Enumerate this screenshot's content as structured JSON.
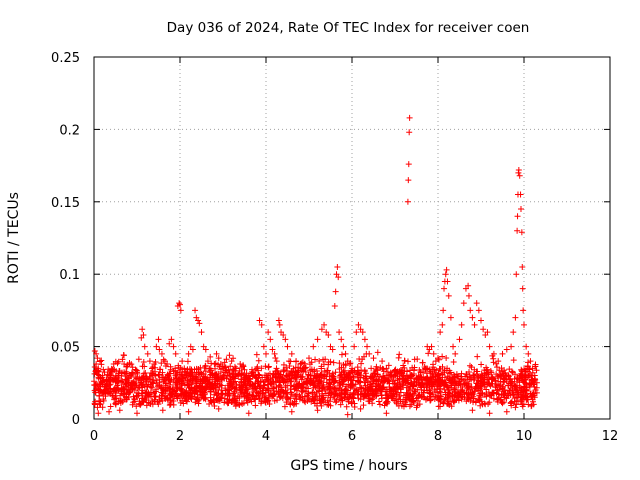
{
  "chart_data": {
    "type": "scatter",
    "title": "Day 036 of 2024, Rate Of TEC Index for receiver coen",
    "xlabel": "GPS time / hours",
    "ylabel": "ROTI / TECUs",
    "xlim": [
      0,
      12
    ],
    "ylim": [
      0,
      0.25
    ],
    "xticks": [
      0,
      2,
      4,
      6,
      8,
      10,
      12
    ],
    "xtick_labels": [
      "0",
      "2",
      "4",
      "6",
      "8",
      "10",
      "12"
    ],
    "yticks": [
      0,
      0.05,
      0.1,
      0.15,
      0.2,
      0.25
    ],
    "ytick_labels": [
      "0",
      "0.05",
      "0.1",
      "0.15",
      "0.2",
      "0.25"
    ],
    "grid": true,
    "marker": "+",
    "marker_color": "#ff0000",
    "series": [
      {
        "name": "ROTI",
        "points": [
          [
            0.02,
            0.047
          ],
          [
            0.05,
            0.045
          ],
          [
            0.08,
            0.042
          ],
          [
            0.05,
            0.038
          ],
          [
            0.1,
            0.035
          ],
          [
            0.12,
            0.03
          ],
          [
            0.15,
            0.028
          ],
          [
            0.2,
            0.025
          ],
          [
            0.25,
            0.022
          ],
          [
            0.3,
            0.02
          ],
          [
            0.02,
            0.01
          ],
          [
            0.08,
            0.008
          ],
          [
            0.15,
            0.012
          ],
          [
            0.35,
            0.03
          ],
          [
            0.42,
            0.034
          ],
          [
            0.5,
            0.028
          ],
          [
            0.58,
            0.03
          ],
          [
            0.65,
            0.032
          ],
          [
            0.7,
            0.038
          ],
          [
            0.75,
            0.036
          ],
          [
            0.82,
            0.03
          ],
          [
            0.9,
            0.025
          ],
          [
            0.95,
            0.02
          ],
          [
            1.0,
            0.018
          ],
          [
            1.05,
            0.022
          ],
          [
            1.1,
            0.056
          ],
          [
            1.12,
            0.062
          ],
          [
            1.15,
            0.058
          ],
          [
            1.18,
            0.05
          ],
          [
            1.25,
            0.045
          ],
          [
            1.3,
            0.04
          ],
          [
            1.35,
            0.035
          ],
          [
            1.4,
            0.038
          ],
          [
            1.45,
            0.05
          ],
          [
            1.5,
            0.055
          ],
          [
            1.52,
            0.048
          ],
          [
            1.58,
            0.045
          ],
          [
            1.65,
            0.04
          ],
          [
            1.7,
            0.038
          ],
          [
            1.75,
            0.052
          ],
          [
            1.8,
            0.055
          ],
          [
            1.85,
            0.05
          ],
          [
            1.9,
            0.045
          ],
          [
            1.95,
            0.078
          ],
          [
            1.98,
            0.08
          ],
          [
            2.0,
            0.079
          ],
          [
            2.02,
            0.075
          ],
          [
            2.05,
            0.04
          ],
          [
            2.1,
            0.035
          ],
          [
            2.15,
            0.03
          ],
          [
            2.2,
            0.045
          ],
          [
            2.25,
            0.05
          ],
          [
            2.3,
            0.048
          ],
          [
            2.35,
            0.075
          ],
          [
            2.38,
            0.07
          ],
          [
            2.42,
            0.068
          ],
          [
            2.45,
            0.066
          ],
          [
            2.5,
            0.06
          ],
          [
            2.55,
            0.05
          ],
          [
            2.6,
            0.048
          ],
          [
            2.65,
            0.04
          ],
          [
            2.7,
            0.035
          ],
          [
            2.75,
            0.03
          ],
          [
            2.8,
            0.038
          ],
          [
            2.85,
            0.045
          ],
          [
            2.9,
            0.042
          ],
          [
            2.95,
            0.038
          ],
          [
            3.0,
            0.035
          ],
          [
            3.05,
            0.032
          ],
          [
            3.1,
            0.03
          ],
          [
            3.15,
            0.044
          ],
          [
            3.2,
            0.04
          ],
          [
            3.3,
            0.035
          ],
          [
            3.4,
            0.038
          ],
          [
            3.5,
            0.034
          ],
          [
            3.6,
            0.03
          ],
          [
            3.7,
            0.032
          ],
          [
            3.8,
            0.036
          ],
          [
            3.85,
            0.068
          ],
          [
            3.9,
            0.065
          ],
          [
            3.95,
            0.05
          ],
          [
            4.0,
            0.045
          ],
          [
            4.05,
            0.06
          ],
          [
            4.1,
            0.055
          ],
          [
            4.15,
            0.048
          ],
          [
            4.2,
            0.045
          ],
          [
            4.25,
            0.04
          ],
          [
            4.3,
            0.068
          ],
          [
            4.32,
            0.065
          ],
          [
            4.35,
            0.06
          ],
          [
            4.4,
            0.058
          ],
          [
            4.45,
            0.055
          ],
          [
            4.5,
            0.05
          ],
          [
            4.6,
            0.045
          ],
          [
            4.7,
            0.04
          ],
          [
            4.8,
            0.038
          ],
          [
            4.9,
            0.035
          ],
          [
            5.0,
            0.042
          ],
          [
            5.1,
            0.05
          ],
          [
            5.2,
            0.055
          ],
          [
            5.3,
            0.062
          ],
          [
            5.35,
            0.065
          ],
          [
            5.4,
            0.06
          ],
          [
            5.45,
            0.058
          ],
          [
            5.5,
            0.05
          ],
          [
            5.55,
            0.048
          ],
          [
            5.6,
            0.078
          ],
          [
            5.62,
            0.088
          ],
          [
            5.64,
            0.1
          ],
          [
            5.66,
            0.105
          ],
          [
            5.68,
            0.098
          ],
          [
            5.7,
            0.06
          ],
          [
            5.75,
            0.055
          ],
          [
            5.8,
            0.05
          ],
          [
            5.85,
            0.045
          ],
          [
            5.9,
            0.04
          ],
          [
            5.95,
            0.038
          ],
          [
            6.0,
            0.035
          ],
          [
            6.05,
            0.05
          ],
          [
            6.1,
            0.06
          ],
          [
            6.15,
            0.065
          ],
          [
            6.2,
            0.062
          ],
          [
            6.25,
            0.06
          ],
          [
            6.3,
            0.055
          ],
          [
            6.35,
            0.05
          ],
          [
            6.4,
            0.045
          ],
          [
            6.5,
            0.042
          ],
          [
            6.6,
            0.046
          ],
          [
            6.7,
            0.04
          ],
          [
            6.8,
            0.035
          ],
          [
            6.9,
            0.032
          ],
          [
            7.0,
            0.03
          ],
          [
            7.1,
            0.028
          ],
          [
            7.2,
            0.03
          ],
          [
            7.3,
            0.15
          ],
          [
            7.31,
            0.165
          ],
          [
            7.32,
            0.176
          ],
          [
            7.33,
            0.198
          ],
          [
            7.34,
            0.208
          ],
          [
            7.4,
            0.03
          ],
          [
            7.5,
            0.028
          ],
          [
            7.6,
            0.032
          ],
          [
            7.7,
            0.035
          ],
          [
            7.75,
            0.05
          ],
          [
            7.8,
            0.048
          ],
          [
            7.85,
            0.05
          ],
          [
            7.9,
            0.045
          ],
          [
            7.95,
            0.04
          ],
          [
            8.0,
            0.042
          ],
          [
            8.05,
            0.06
          ],
          [
            8.1,
            0.065
          ],
          [
            8.12,
            0.075
          ],
          [
            8.14,
            0.09
          ],
          [
            8.16,
            0.095
          ],
          [
            8.18,
            0.1
          ],
          [
            8.2,
            0.103
          ],
          [
            8.22,
            0.095
          ],
          [
            8.25,
            0.085
          ],
          [
            8.3,
            0.07
          ],
          [
            8.35,
            0.05
          ],
          [
            8.4,
            0.045
          ],
          [
            8.5,
            0.055
          ],
          [
            8.55,
            0.065
          ],
          [
            8.6,
            0.08
          ],
          [
            8.65,
            0.09
          ],
          [
            8.7,
            0.092
          ],
          [
            8.72,
            0.085
          ],
          [
            8.75,
            0.075
          ],
          [
            8.8,
            0.07
          ],
          [
            8.85,
            0.065
          ],
          [
            8.9,
            0.08
          ],
          [
            8.95,
            0.075
          ],
          [
            9.0,
            0.068
          ],
          [
            9.05,
            0.062
          ],
          [
            9.1,
            0.058
          ],
          [
            9.15,
            0.06
          ],
          [
            9.2,
            0.05
          ],
          [
            9.3,
            0.045
          ],
          [
            9.4,
            0.04
          ],
          [
            9.5,
            0.045
          ],
          [
            9.6,
            0.048
          ],
          [
            9.7,
            0.05
          ],
          [
            9.75,
            0.06
          ],
          [
            9.8,
            0.07
          ],
          [
            9.82,
            0.1
          ],
          [
            9.84,
            0.13
          ],
          [
            9.85,
            0.14
          ],
          [
            9.86,
            0.155
          ],
          [
            9.87,
            0.17
          ],
          [
            9.88,
            0.172
          ],
          [
            9.9,
            0.168
          ],
          [
            9.92,
            0.155
          ],
          [
            9.93,
            0.145
          ],
          [
            9.95,
            0.129
          ],
          [
            9.96,
            0.105
          ],
          [
            9.97,
            0.09
          ],
          [
            9.98,
            0.075
          ],
          [
            10.0,
            0.065
          ],
          [
            10.05,
            0.05
          ],
          [
            10.1,
            0.045
          ],
          [
            10.15,
            0.04
          ],
          [
            10.2,
            0.035
          ],
          [
            10.25,
            0.03
          ],
          [
            10.3,
            0.025
          ],
          [
            10.3,
            0.018
          ],
          [
            10.25,
            0.015
          ],
          [
            9.6,
            0.005
          ],
          [
            9.8,
            0.008
          ],
          [
            10.1,
            0.01
          ],
          [
            8.8,
            0.006
          ],
          [
            7.5,
            0.008
          ],
          [
            6.8,
            0.004
          ],
          [
            6.2,
            0.007
          ],
          [
            5.9,
            0.003
          ],
          [
            5.2,
            0.006
          ],
          [
            4.6,
            0.005
          ],
          [
            3.6,
            0.004
          ],
          [
            2.9,
            0.007
          ],
          [
            2.2,
            0.005
          ],
          [
            1.6,
            0.006
          ],
          [
            1.0,
            0.004
          ],
          [
            0.6,
            0.006
          ],
          [
            0.35,
            0.005
          ],
          [
            0.1,
            0.004
          ],
          [
            9.2,
            0.004
          ]
        ]
      }
    ]
  }
}
